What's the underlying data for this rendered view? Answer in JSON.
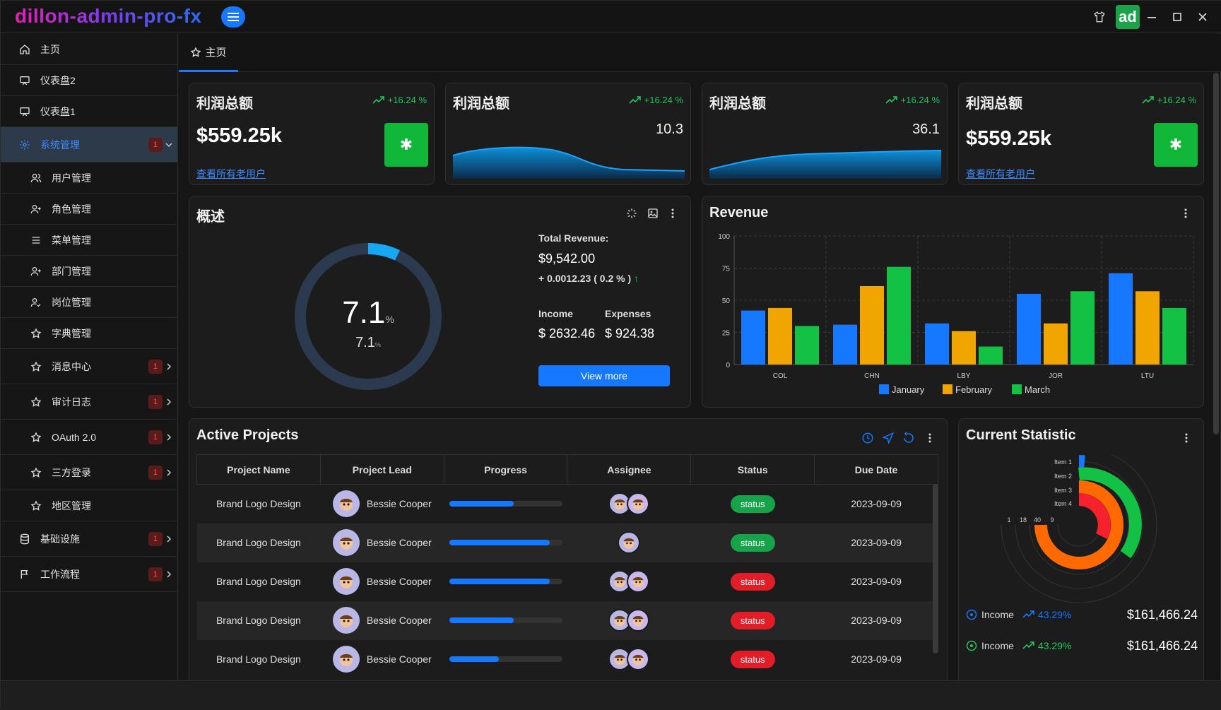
{
  "app": {
    "title": "dillon-admin-pro-fx",
    "avatar_text": "ad"
  },
  "sidebar": {
    "items": [
      {
        "label": "主页"
      },
      {
        "label": "仪表盘2"
      },
      {
        "label": "仪表盘1"
      },
      {
        "label": "系统管理",
        "badge": "1"
      },
      {
        "label": "用户管理"
      },
      {
        "label": "角色管理"
      },
      {
        "label": "菜单管理"
      },
      {
        "label": "部门管理"
      },
      {
        "label": "岗位管理"
      },
      {
        "label": "字典管理"
      },
      {
        "label": "消息中心",
        "badge": "1"
      },
      {
        "label": "审计日志",
        "badge": "1"
      },
      {
        "label": "OAuth 2.0",
        "badge": "1"
      },
      {
        "label": "三方登录",
        "badge": "1"
      },
      {
        "label": "地区管理"
      },
      {
        "label": "基础设施",
        "badge": "1"
      },
      {
        "label": "工作流程",
        "badge": "1"
      }
    ]
  },
  "tabs": {
    "home": "主页"
  },
  "stats": [
    {
      "title": "利润总额",
      "trend": "+16.24 %",
      "value": "$559.25k",
      "link": "查看所有老用户"
    },
    {
      "title": "利润总额",
      "trend": "+16.24 %",
      "value": "10.3"
    },
    {
      "title": "利润总额",
      "trend": "+16.24 %",
      "value": "36.1"
    },
    {
      "title": "利润总额",
      "trend": "+16.24 %",
      "value": "$559.25k",
      "link": "查看所有老用户"
    }
  ],
  "overview": {
    "title": "概述",
    "ring_value": "7.1",
    "ring_unit": "%",
    "ring_sub": "7.1",
    "ring_sub_unit": "%",
    "ring_percent": 7.1,
    "total_revenue_label": "Total Revenue:",
    "total_revenue": "$9,542.00",
    "change": "+ 0.0012.23 ( 0.2 % )",
    "income_label": "Income",
    "expenses_label": "Expenses",
    "income": "$ 2632.46",
    "expenses": "$ 924.38",
    "button": "View more"
  },
  "revenue": {
    "title": "Revenue"
  },
  "chart_data": {
    "type": "bar",
    "title": "Revenue",
    "categories": [
      "COL",
      "CHN",
      "LBY",
      "JOR",
      "LTU"
    ],
    "series": [
      {
        "name": "January",
        "values": [
          42,
          31,
          32,
          55,
          71
        ],
        "color": "#1677ff"
      },
      {
        "name": "February",
        "values": [
          44,
          61,
          26,
          32,
          57
        ],
        "color": "#f0a500"
      },
      {
        "name": "March",
        "values": [
          30,
          76,
          14,
          57,
          44
        ],
        "color": "#13c245"
      }
    ],
    "yticks": [
      0,
      25,
      50,
      75,
      100
    ],
    "ylim": [
      0,
      100
    ],
    "legend": "bottom"
  },
  "projects": {
    "title": "Active Projects",
    "columns": [
      "Project Name",
      "Project Lead",
      "Progress",
      "Assignee",
      "Status",
      "Due Date"
    ],
    "rows": [
      {
        "name": "Brand Logo Design",
        "lead": "Bessie Cooper",
        "progress": 0.57,
        "status": "status",
        "status_color": "#16a34a",
        "due": "2023-09-09"
      },
      {
        "name": "Brand Logo Design",
        "lead": "Bessie Cooper",
        "progress": 0.89,
        "status": "status",
        "status_color": "#16a34a",
        "due": "2023-09-09"
      },
      {
        "name": "Brand Logo Design",
        "lead": "Bessie Cooper",
        "progress": 0.89,
        "status": "status",
        "status_color": "#e11d28",
        "due": "2023-09-09"
      },
      {
        "name": "Brand Logo Design",
        "lead": "Bessie Cooper",
        "progress": 0.57,
        "status": "status",
        "status_color": "#e11d28",
        "due": "2023-09-09"
      },
      {
        "name": "Brand Logo Design",
        "lead": "Bessie Cooper",
        "progress": 0.44,
        "status": "status",
        "status_color": "#e11d28",
        "due": "2023-09-09"
      }
    ]
  },
  "statistic": {
    "title": "Current Statistic",
    "items": [
      "Item 1",
      "Item 2",
      "Item 3",
      "Item 4"
    ],
    "axis_ticks": [
      "1",
      "18",
      "40",
      "9"
    ],
    "rows": [
      {
        "label": "Income",
        "pct": "43.29%",
        "value": "$161,466.24",
        "color": "#1677ff"
      },
      {
        "label": "Income",
        "pct": "43.29%",
        "value": "$161,466.24",
        "color": "#22c55e"
      }
    ]
  }
}
